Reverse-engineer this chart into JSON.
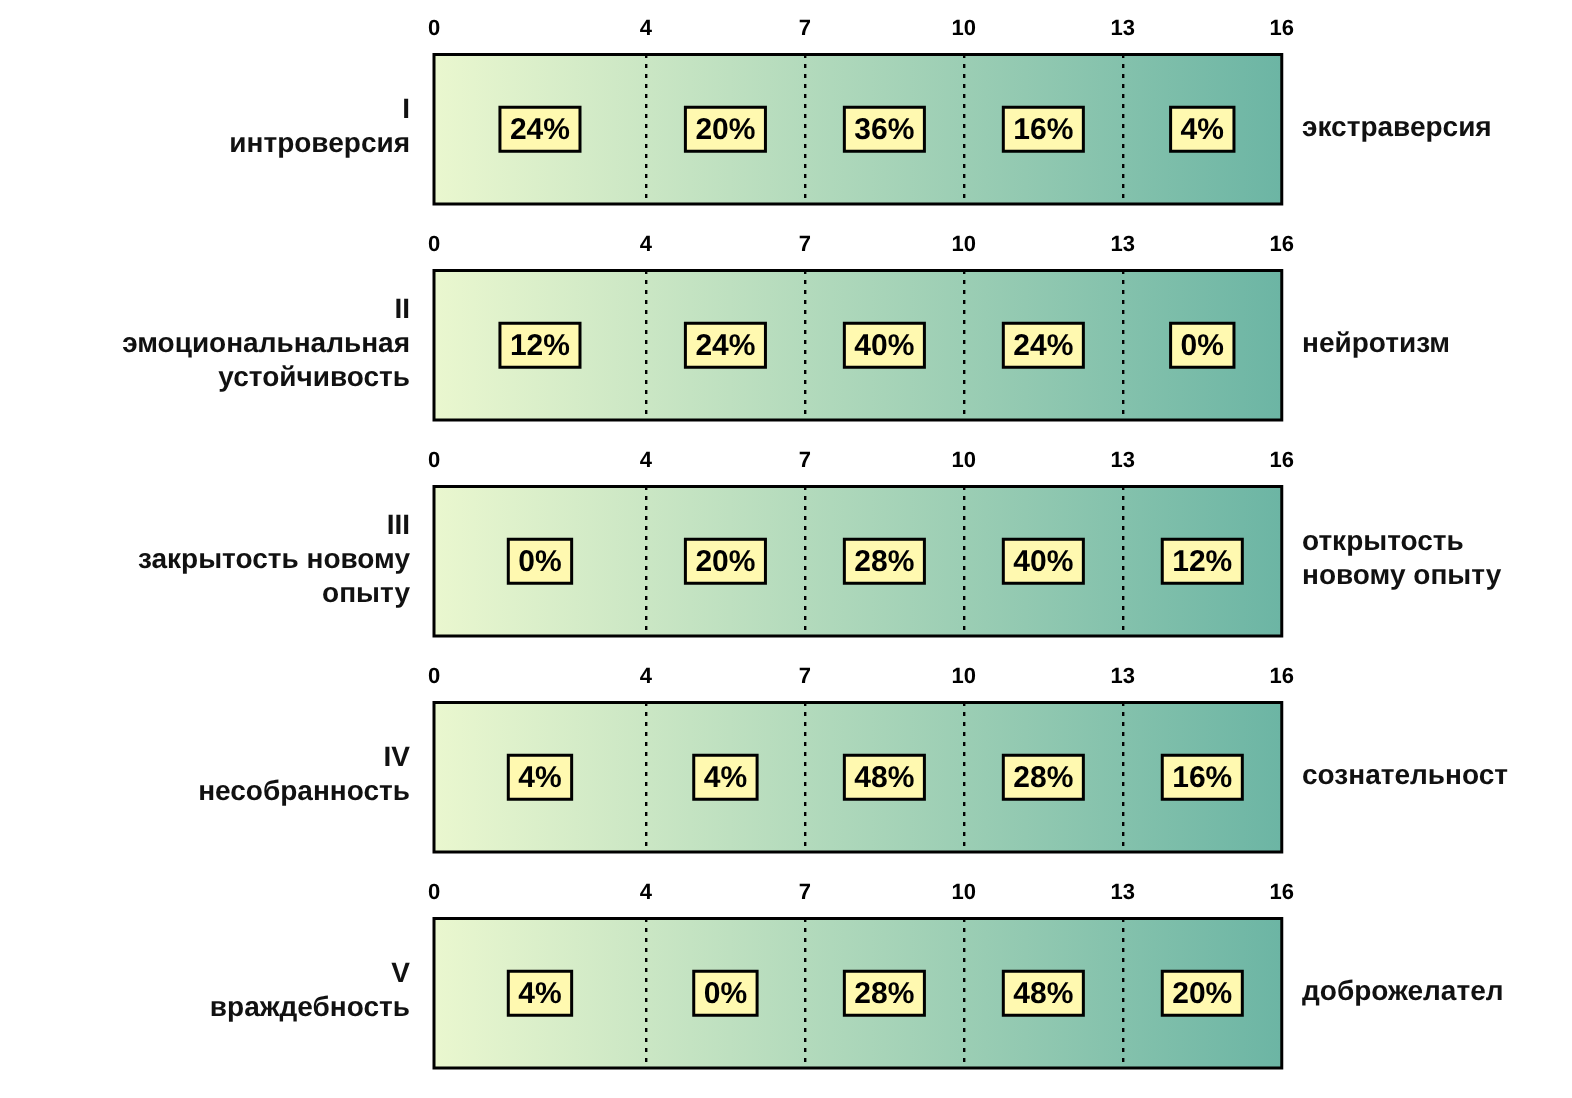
{
  "chart_data": [
    {
      "type": "heatmap",
      "title": "I",
      "y_categories": [
        "интроверсия"
      ],
      "y2_categories": [
        "экстраверсия"
      ],
      "xlim": [
        0,
        16
      ],
      "xticks": [
        0,
        4,
        7,
        10,
        13,
        16
      ],
      "cells": [
        [
          24,
          20,
          36,
          16,
          4
        ]
      ],
      "cell_labels": [
        [
          "24%",
          "20%",
          "36%",
          "16%",
          "4%"
        ]
      ],
      "grid": "x"
    },
    {
      "type": "heatmap",
      "title": "II",
      "y_categories": [
        "эмоциональнальная устойчивость"
      ],
      "y2_categories": [
        "нейротизм"
      ],
      "xlim": [
        0,
        16
      ],
      "xticks": [
        0,
        4,
        7,
        10,
        13,
        16
      ],
      "cells": [
        [
          12,
          24,
          40,
          24,
          0
        ]
      ],
      "cell_labels": [
        [
          "12%",
          "24%",
          "40%",
          "24%",
          "0%"
        ]
      ],
      "grid": "x"
    },
    {
      "type": "heatmap",
      "title": "III",
      "y_categories": [
        "закрытость новому опыту"
      ],
      "y2_categories": [
        "открытость новому опыту"
      ],
      "xlim": [
        0,
        16
      ],
      "xticks": [
        0,
        4,
        7,
        10,
        13,
        16
      ],
      "cells": [
        [
          0,
          20,
          28,
          40,
          12
        ]
      ],
      "cell_labels": [
        [
          "0%",
          "20%",
          "28%",
          "40%",
          "12%"
        ]
      ],
      "grid": "x"
    },
    {
      "type": "heatmap",
      "title": "IV",
      "y_categories": [
        "несобранность"
      ],
      "y2_categories": [
        "сознательност"
      ],
      "xlim": [
        0,
        16
      ],
      "xticks": [
        0,
        4,
        7,
        10,
        13,
        16
      ],
      "cells": [
        [
          4,
          4,
          48,
          28,
          16
        ]
      ],
      "cell_labels": [
        [
          "4%",
          "4%",
          "48%",
          "28%",
          "16%"
        ]
      ],
      "grid": "x"
    },
    {
      "type": "heatmap",
      "title": "V",
      "y_categories": [
        "враждебность"
      ],
      "y2_categories": [
        "доброжелател"
      ],
      "xlim": [
        0,
        16
      ],
      "xticks": [
        0,
        4,
        7,
        10,
        13,
        16
      ],
      "cells": [
        [
          4,
          0,
          28,
          48,
          20
        ]
      ],
      "cell_labels": [
        [
          "4%",
          "0%",
          "28%",
          "48%",
          "20%"
        ]
      ],
      "grid": "x"
    }
  ]
}
